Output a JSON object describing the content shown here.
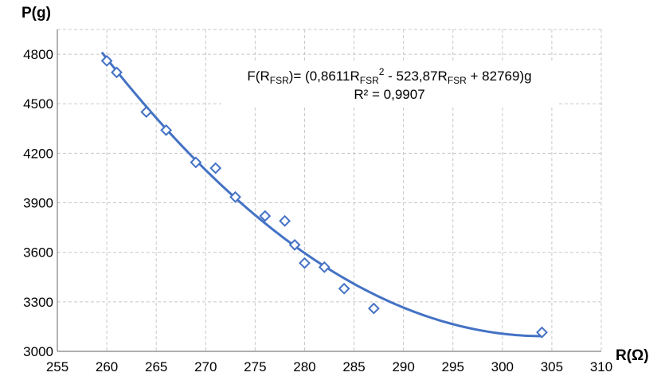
{
  "chart_data": {
    "type": "scatter",
    "title": "",
    "xlabel": "R(Ω)",
    "ylabel": "P(g)",
    "xlim": [
      255,
      310
    ],
    "ylim": [
      3000,
      4950
    ],
    "x_ticks": [
      255,
      260,
      265,
      270,
      275,
      280,
      285,
      290,
      295,
      300,
      305,
      310
    ],
    "y_ticks": [
      3000,
      3300,
      3600,
      3900,
      4200,
      4500,
      4800
    ],
    "grid": true,
    "grid_style": "dashed",
    "marker": "diamond-open",
    "series_color": "#4472C4",
    "series": [
      {
        "points": [
          {
            "x": 260,
            "y": 4760
          },
          {
            "x": 261,
            "y": 4690
          },
          {
            "x": 264,
            "y": 4450
          },
          {
            "x": 266,
            "y": 4340
          },
          {
            "x": 269,
            "y": 4145
          },
          {
            "x": 271,
            "y": 4110
          },
          {
            "x": 273,
            "y": 3935
          },
          {
            "x": 276,
            "y": 3820
          },
          {
            "x": 278,
            "y": 3790
          },
          {
            "x": 279,
            "y": 3645
          },
          {
            "x": 280,
            "y": 3535
          },
          {
            "x": 282,
            "y": 3510
          },
          {
            "x": 284,
            "y": 3380
          },
          {
            "x": 287,
            "y": 3260
          },
          {
            "x": 304,
            "y": 3115
          }
        ]
      }
    ],
    "trendline": {
      "type": "polynomial",
      "order": 2,
      "coefficients": [
        0.8611,
        -523.87,
        82769
      ],
      "x_range": [
        259.5,
        304
      ],
      "equation": {
        "prefix": "F(R",
        "sub1": "FSR",
        "mid1": ")= (0,8611R",
        "sub2": "FSR",
        "sup": "2",
        "mid2": " - 523,87R",
        "sub3": "FSR",
        "suffix": " + 82769)g"
      },
      "r_squared_label": "R² = 0,9907"
    }
  }
}
